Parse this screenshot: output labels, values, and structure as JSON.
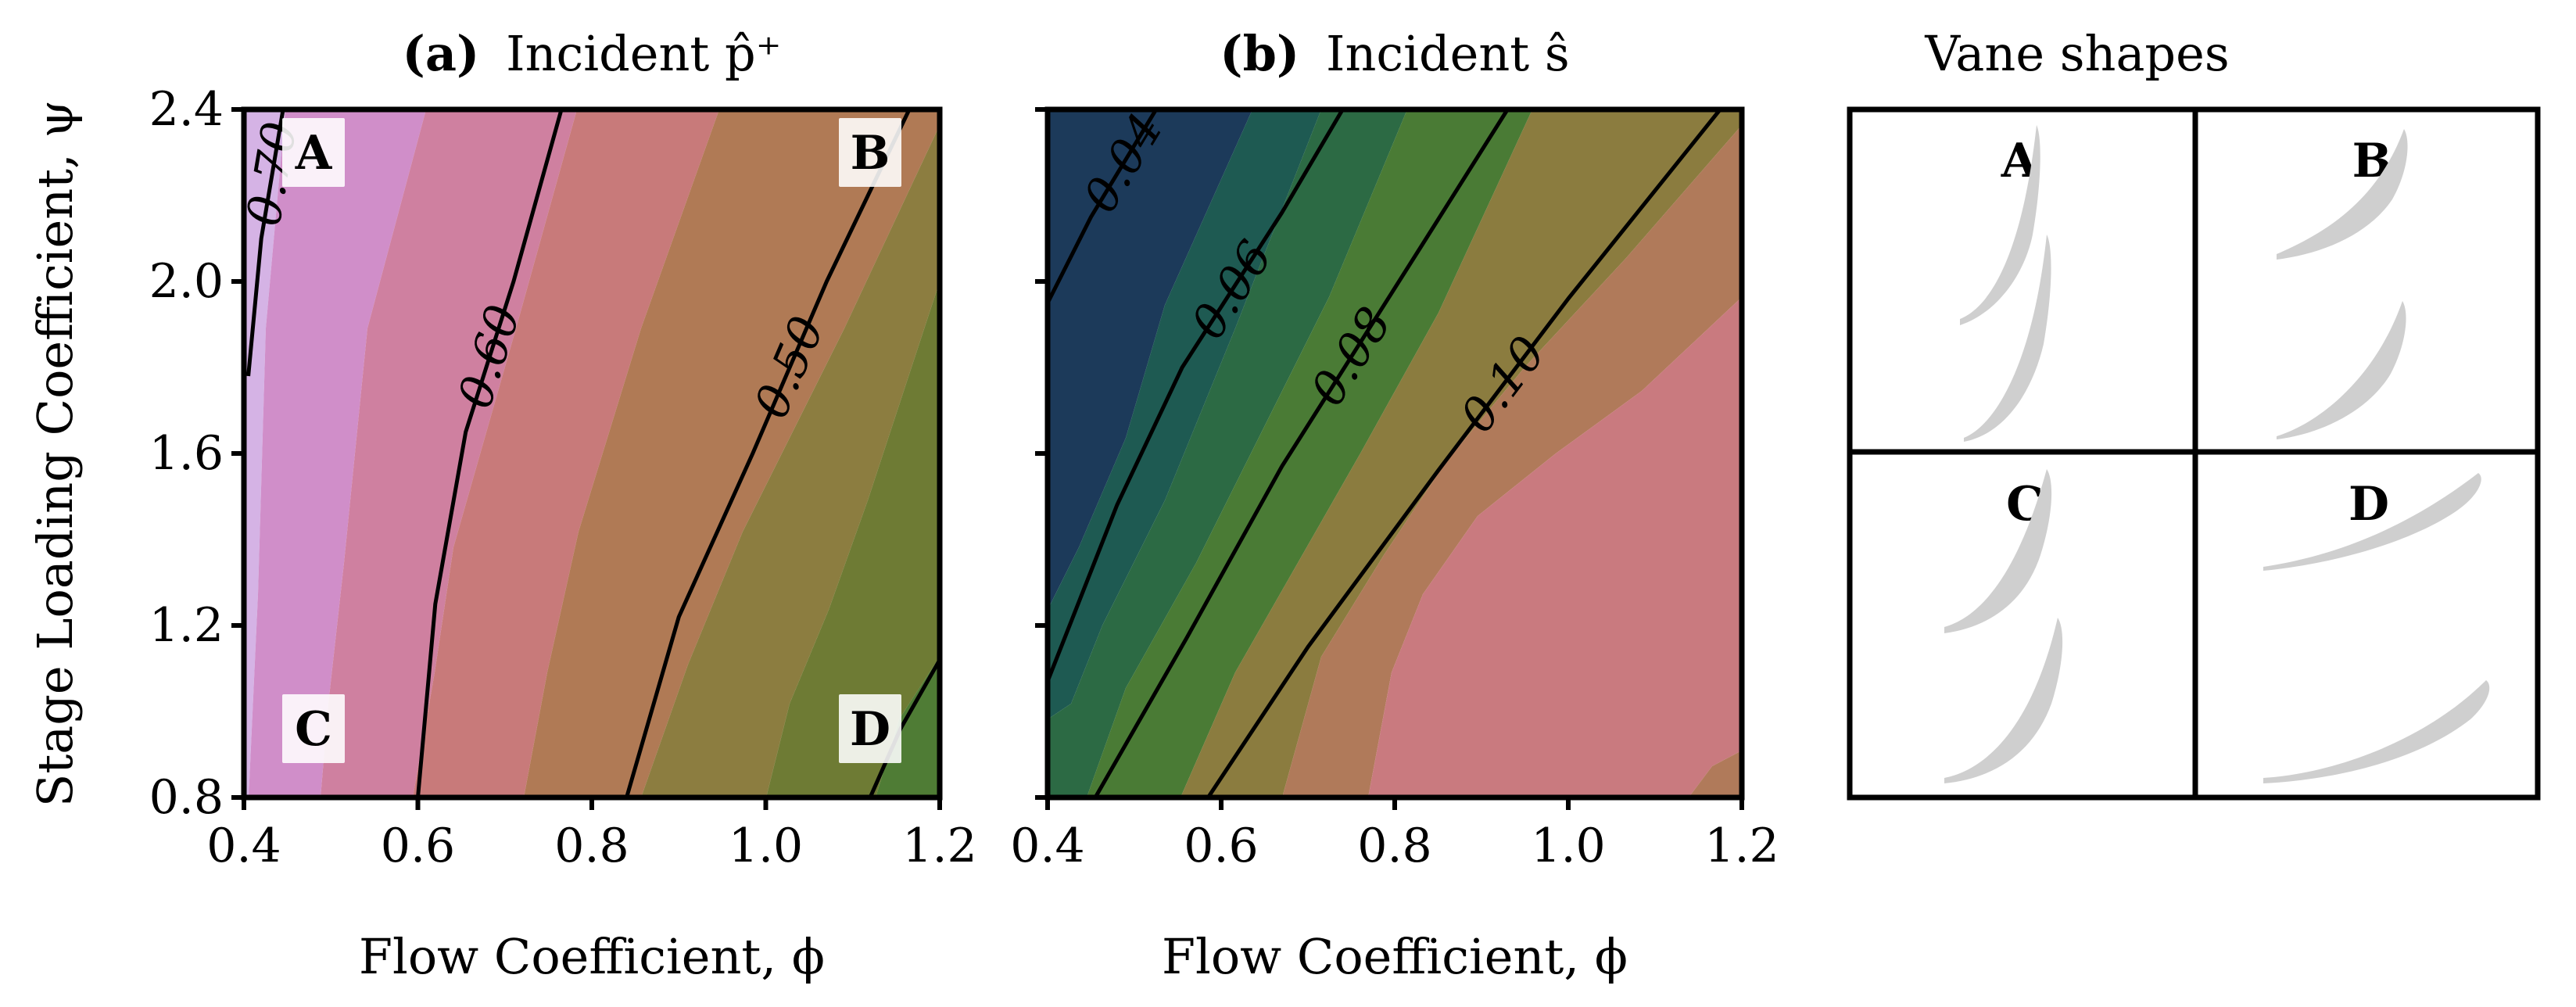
{
  "figure": {
    "ylabel": "Stage Loading Coefficient, ψ",
    "panel_a": {
      "title_bold": "(a)",
      "title_rest": "Incident p̂⁺",
      "xlabel": "Flow Coefficient, ϕ",
      "corner_labels": [
        "A",
        "B",
        "C",
        "D"
      ]
    },
    "panel_b": {
      "title_bold": "(b)",
      "title_rest": "Incident ŝ",
      "xlabel": "Flow Coefficient, ϕ"
    },
    "panel_c": {
      "title": "Vane shapes",
      "cell_labels": [
        "A",
        "B",
        "C",
        "D"
      ]
    }
  },
  "chart_data": [
    {
      "type": "contour",
      "panel": "a",
      "title": "(a) Incident p̂⁺",
      "xlabel": "Flow Coefficient, ϕ",
      "ylabel": "Stage Loading Coefficient, ψ",
      "xlim": [
        0.4,
        1.2
      ],
      "ylim": [
        0.8,
        2.4
      ],
      "xticks": [
        "0.4",
        "0.6",
        "0.8",
        "1.0",
        "1.2"
      ],
      "yticks": [
        "0.8",
        "1.2",
        "1.6",
        "2.0",
        "2.4"
      ],
      "fill_colors": [
        "#d5b3e5",
        "#d08ec9",
        "#cf80a0",
        "#c87a7a",
        "#b07a55",
        "#8c7d40",
        "#6e7b34",
        "#4f7c35"
      ],
      "contours": [
        {
          "label": "0.70",
          "points": [
            [
              0.405,
              1.78
            ],
            [
              0.42,
              2.1
            ],
            [
              0.445,
              2.4
            ]
          ]
        },
        {
          "label": "0.60",
          "points": [
            [
              0.6,
              0.8
            ],
            [
              0.62,
              1.25
            ],
            [
              0.655,
              1.65
            ],
            [
              0.71,
              2.0
            ],
            [
              0.765,
              2.4
            ]
          ]
        },
        {
          "label": "0.50",
          "points": [
            [
              0.84,
              0.8
            ],
            [
              0.9,
              1.22
            ],
            [
              0.985,
              1.6
            ],
            [
              1.07,
              2.0
            ],
            [
              1.165,
              2.4
            ]
          ]
        },
        {
          "label": "",
          "points": [
            [
              1.12,
              0.8
            ],
            [
              1.155,
              0.96
            ],
            [
              1.2,
              1.12
            ]
          ]
        }
      ],
      "corner_markers": [
        {
          "label": "A",
          "x": 0.48,
          "y": 2.3
        },
        {
          "label": "B",
          "x": 1.12,
          "y": 2.3
        },
        {
          "label": "C",
          "x": 0.48,
          "y": 0.96
        },
        {
          "label": "D",
          "x": 1.12,
          "y": 0.96
        }
      ]
    },
    {
      "type": "contour",
      "panel": "b",
      "title": "(b) Incident ŝ",
      "xlabel": "Flow Coefficient, ϕ",
      "xlim": [
        0.4,
        1.2
      ],
      "ylim": [
        0.8,
        2.4
      ],
      "xticks": [
        "0.4",
        "0.6",
        "0.8",
        "1.0",
        "1.2"
      ],
      "fill_colors": [
        "#1c3a5a",
        "#1e5a52",
        "#2c6a44",
        "#4a7b35",
        "#8b7c3f",
        "#b07a5a",
        "#c97a7f"
      ],
      "contours": [
        {
          "label": "0.04",
          "points": [
            [
              0.4,
              1.95
            ],
            [
              0.45,
              2.15
            ],
            [
              0.525,
              2.4
            ]
          ]
        },
        {
          "label": "0.06",
          "points": [
            [
              0.4,
              1.07
            ],
            [
              0.48,
              1.48
            ],
            [
              0.555,
              1.8
            ],
            [
              0.67,
              2.16
            ],
            [
              0.74,
              2.4
            ]
          ]
        },
        {
          "label": "0.08",
          "points": [
            [
              0.455,
              0.8
            ],
            [
              0.56,
              1.17
            ],
            [
              0.67,
              1.57
            ],
            [
              0.83,
              2.08
            ],
            [
              0.93,
              2.4
            ]
          ]
        },
        {
          "label": "0.10",
          "points": [
            [
              0.585,
              0.8
            ],
            [
              0.7,
              1.15
            ],
            [
              0.85,
              1.56
            ],
            [
              1.0,
              1.96
            ],
            [
              1.175,
              2.4
            ]
          ]
        }
      ]
    }
  ]
}
